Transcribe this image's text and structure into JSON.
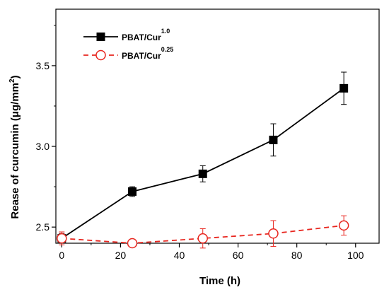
{
  "chart_data": {
    "type": "line",
    "xlabel": "Time (h)",
    "ylabel": {
      "prefix": "Rease of curcumin (μg/mm",
      "sup": "2",
      "suffix": ")"
    },
    "xlim": [
      -2,
      108
    ],
    "ylim": [
      2.4,
      3.85
    ],
    "x_ticks": [
      0,
      20,
      40,
      60,
      80,
      100
    ],
    "x_tick_labels": [
      "0",
      "20",
      "40",
      "60",
      "80",
      "100"
    ],
    "y_ticks": [
      2.5,
      3.0,
      3.5
    ],
    "y_tick_labels": [
      "2.5",
      "3.0",
      "3.5"
    ],
    "legend_position": "top-left",
    "series": [
      {
        "name": "PBAT/Cur",
        "name_sup": "1.0",
        "color": "#000000",
        "line_style": "solid",
        "marker": "filled-square",
        "x": [
          0,
          24,
          48,
          72,
          96
        ],
        "y": [
          2.43,
          2.72,
          2.83,
          3.04,
          3.36
        ],
        "error": [
          0.03,
          0.03,
          0.05,
          0.1,
          0.1
        ]
      },
      {
        "name": "PBAT/Cur",
        "name_sup": "0.25",
        "color": "#e8261f",
        "line_style": "dashed",
        "marker": "open-circle",
        "x": [
          0,
          24,
          48,
          72,
          96
        ],
        "y": [
          2.43,
          2.4,
          2.43,
          2.46,
          2.51
        ],
        "error": [
          0.04,
          0.02,
          0.06,
          0.08,
          0.06
        ]
      }
    ]
  }
}
